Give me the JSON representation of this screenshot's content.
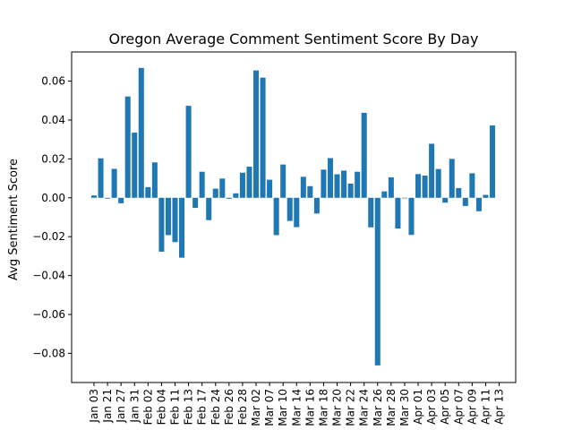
{
  "chart_data": {
    "type": "bar",
    "title": "Oregon Average Comment Sentiment Score By Day",
    "xlabel": "",
    "ylabel": "Avg Sentiment Score",
    "ylim": [
      -0.095,
      0.075
    ],
    "yticks": [
      0.06,
      0.04,
      0.02,
      0.0,
      -0.02,
      -0.04,
      -0.06,
      -0.08
    ],
    "ytick_labels": [
      "0.06",
      "0.04",
      "0.02",
      "0.00",
      "−0.02",
      "−0.04",
      "−0.06",
      "−0.08"
    ],
    "color": "#1f77b4",
    "grid": false,
    "x_tick_labels": [
      "Jan 03",
      "Jan 21",
      "Jan 27",
      "Jan 31",
      "Feb 02",
      "Feb 04",
      "Feb 11",
      "Feb 13",
      "Feb 17",
      "Feb 24",
      "Feb 26",
      "Feb 28",
      "Mar 02",
      "Mar 07",
      "Mar 10",
      "Mar 14",
      "Mar 16",
      "Mar 18",
      "Mar 20",
      "Mar 22",
      "Mar 24",
      "Mar 26",
      "Mar 28",
      "Mar 30",
      "Apr 01",
      "Apr 03",
      "Apr 05",
      "Apr 07",
      "Apr 09",
      "Apr 11",
      "Apr 13"
    ],
    "values": [
      0.0012,
      0.0203,
      -0.0004,
      0.0149,
      -0.0028,
      0.0521,
      0.0335,
      0.0668,
      0.0055,
      0.0182,
      -0.0277,
      -0.0192,
      -0.0228,
      -0.0308,
      0.0473,
      -0.0052,
      0.0134,
      -0.0115,
      0.0047,
      0.0099,
      -0.0005,
      0.0023,
      0.0129,
      0.016,
      0.0655,
      0.0618,
      0.0093,
      -0.0192,
      0.0171,
      -0.0119,
      -0.0151,
      0.0108,
      0.006,
      -0.0081,
      0.0145,
      0.0204,
      0.0121,
      0.014,
      0.0073,
      0.0134,
      0.0437,
      -0.0152,
      -0.0862,
      0.0033,
      0.0105,
      -0.0158,
      -0.0003,
      -0.0191,
      0.0122,
      0.0114,
      0.0278,
      0.0148,
      -0.0025,
      0.02,
      0.005,
      -0.0042,
      0.0126,
      -0.0069,
      0.0015,
      0.0372
    ]
  }
}
